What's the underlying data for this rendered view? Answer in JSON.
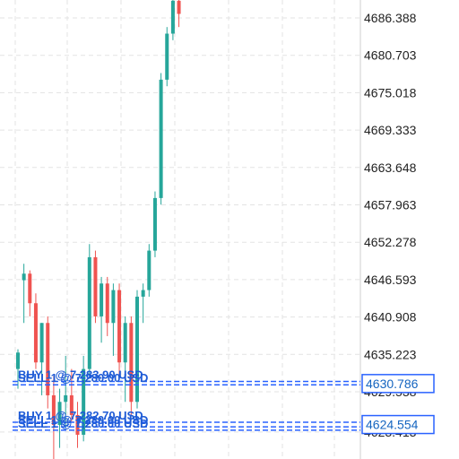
{
  "colors": {
    "up": "#26a69a",
    "down": "#ef5350",
    "grid": "#e3e3e3",
    "order_line": "#2962ff",
    "tag_border": "#2962ff",
    "tag_text": "#1565c0",
    "background": "#ffffff"
  },
  "price_axis": {
    "ticks": [
      "4686.388",
      "4680.703",
      "4675.018",
      "4669.333",
      "4663.648",
      "4657.963",
      "4652.278",
      "4646.593",
      "4640.908",
      "4635.223",
      "4629.538",
      "4623.413"
    ]
  },
  "price_tags": [
    {
      "label": "4630.786",
      "value": 4630.786
    },
    {
      "label": "4624.554",
      "value": 4624.554
    }
  ],
  "orders": [
    {
      "text": "BUY 1 @ 7,283.90 USD",
      "value": 4631.1
    },
    {
      "text": "SELL 1 @ 7,280.00 USD",
      "value": 4630.6
    },
    {
      "text": "BUY 1 @ 7,282.70 USD",
      "value": 4624.9
    },
    {
      "text": "SELL 1 @ 7,280.00 USD",
      "value": 4624.2
    },
    {
      "text": "SELL 1 @ 7,280.00 USD",
      "value": 4623.7
    }
  ],
  "chart_data": {
    "type": "candlestick",
    "ylim": [
      4620.0,
      4689.0
    ],
    "candles": [
      {
        "o": 4633.0,
        "h": 4636.0,
        "l": 4630.0,
        "c": 4635.5
      },
      {
        "o": 4646.5,
        "h": 4649.0,
        "l": 4640.0,
        "c": 4647.5
      },
      {
        "o": 4647.5,
        "h": 4648.0,
        "l": 4641.0,
        "c": 4643.0
      },
      {
        "o": 4643.0,
        "h": 4644.5,
        "l": 4633.0,
        "c": 4634.0
      },
      {
        "o": 4634.0,
        "h": 4640.0,
        "l": 4629.0,
        "c": 4640.0
      },
      {
        "o": 4640.0,
        "h": 4641.0,
        "l": 4627.0,
        "c": 4629.0
      },
      {
        "o": 4629.0,
        "h": 4632.0,
        "l": 4619.0,
        "c": 4624.5
      },
      {
        "o": 4624.5,
        "h": 4630.0,
        "l": 4621.0,
        "c": 4628.0
      },
      {
        "o": 4628.0,
        "h": 4635.0,
        "l": 4624.0,
        "c": 4629.0
      },
      {
        "o": 4629.0,
        "h": 4633.0,
        "l": 4625.0,
        "c": 4626.0
      },
      {
        "o": 4626.0,
        "h": 4628.0,
        "l": 4621.0,
        "c": 4623.0
      },
      {
        "o": 4623.0,
        "h": 4635.0,
        "l": 4622.0,
        "c": 4633.0
      },
      {
        "o": 4633.0,
        "h": 4652.0,
        "l": 4632.0,
        "c": 4650.0
      },
      {
        "o": 4650.0,
        "h": 4651.0,
        "l": 4640.0,
        "c": 4641.0
      },
      {
        "o": 4641.0,
        "h": 4647.0,
        "l": 4637.0,
        "c": 4646.0
      },
      {
        "o": 4646.0,
        "h": 4647.0,
        "l": 4638.0,
        "c": 4640.0
      },
      {
        "o": 4640.0,
        "h": 4646.0,
        "l": 4635.0,
        "c": 4645.0
      },
      {
        "o": 4645.0,
        "h": 4646.0,
        "l": 4632.0,
        "c": 4634.0
      },
      {
        "o": 4634.0,
        "h": 4641.0,
        "l": 4628.0,
        "c": 4640.0
      },
      {
        "o": 4640.0,
        "h": 4641.0,
        "l": 4626.0,
        "c": 4628.0
      },
      {
        "o": 4628.0,
        "h": 4645.0,
        "l": 4627.0,
        "c": 4644.0
      },
      {
        "o": 4644.0,
        "h": 4646.0,
        "l": 4640.0,
        "c": 4645.0
      },
      {
        "o": 4645.0,
        "h": 4652.0,
        "l": 4644.0,
        "c": 4651.0
      },
      {
        "o": 4651.0,
        "h": 4660.0,
        "l": 4650.0,
        "c": 4659.0
      },
      {
        "o": 4659.0,
        "h": 4678.0,
        "l": 4658.0,
        "c": 4677.0
      },
      {
        "o": 4677.0,
        "h": 4685.0,
        "l": 4676.0,
        "c": 4684.0
      },
      {
        "o": 4684.0,
        "h": 4690.0,
        "l": 4683.0,
        "c": 4689.0
      },
      {
        "o": 4689.0,
        "h": 4692.0,
        "l": 4685.0,
        "c": 4687.0
      }
    ]
  }
}
